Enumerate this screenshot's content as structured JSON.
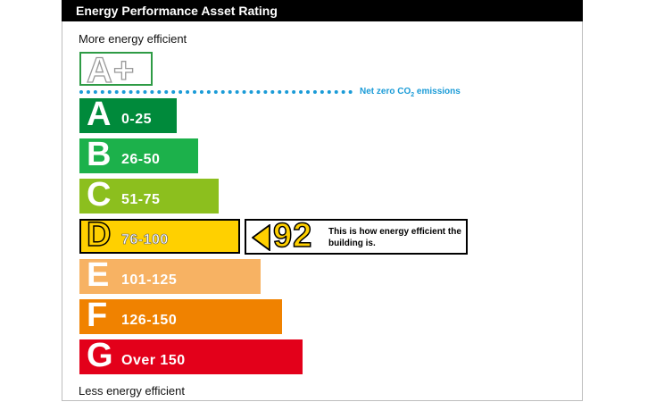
{
  "title": "Energy Performance Asset Rating",
  "top_label": "More energy efficient",
  "bottom_label": "Less energy efficient",
  "aplus_label": "A+",
  "net_zero": {
    "label_prefix": "Net zero CO",
    "label_sub": "2",
    "label_suffix": " emissions",
    "color": "#1a9bd7"
  },
  "pointer": {
    "score": "92",
    "message": "This is how energy efficient the building is."
  },
  "chart_data": {
    "type": "bar",
    "orientation": "horizontal",
    "categories": [
      "A",
      "B",
      "C",
      "D",
      "E",
      "F",
      "G"
    ],
    "ranges": [
      "0-25",
      "26-50",
      "51-75",
      "76-100",
      "101-125",
      "126-150",
      "Over 150"
    ],
    "colors": [
      "#008a3b",
      "#1cb14b",
      "#8cbf1e",
      "#ffd000",
      "#f7b263",
      "#f08200",
      "#e3001a"
    ],
    "current_rating": "D",
    "current_score": 92
  }
}
